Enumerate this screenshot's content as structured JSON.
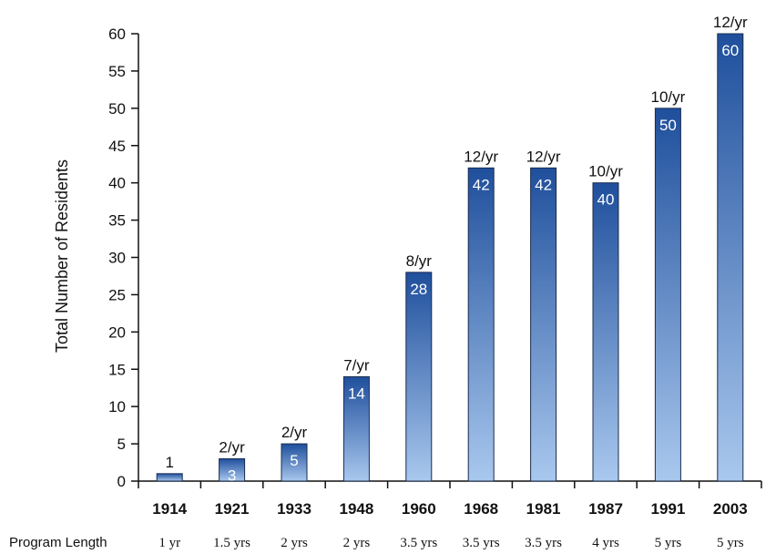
{
  "chart_data": {
    "type": "bar",
    "title": "",
    "xlabel": "",
    "ylabel": "Total Number of Residents",
    "ylim": [
      0,
      60
    ],
    "yticks": [
      0,
      5,
      10,
      15,
      20,
      25,
      30,
      35,
      40,
      45,
      50,
      55,
      60
    ],
    "categories": [
      "1914",
      "1921",
      "1933",
      "1948",
      "1960",
      "1968",
      "1981",
      "1987",
      "1991",
      "2003"
    ],
    "values": [
      1,
      3,
      5,
      14,
      28,
      42,
      42,
      40,
      50,
      60
    ],
    "value_labels": [
      "",
      "3",
      "5",
      "14",
      "28",
      "42",
      "42",
      "40",
      "50",
      "60"
    ],
    "top_labels": [
      "1",
      "2/yr",
      "2/yr",
      "7/yr",
      "8/yr",
      "12/yr",
      "12/yr",
      "10/yr",
      "10/yr",
      "12/yr"
    ],
    "program_length_title": "Program Length",
    "program_lengths": [
      "1 yr",
      "1.5 yrs",
      "2 yrs",
      "2 yrs",
      "3.5 yrs",
      "3.5 yrs",
      "3.5 yrs",
      "4 yrs",
      "5 yrs",
      "5 yrs"
    ],
    "grid": false,
    "legend": "none",
    "colors": {
      "bar_top": "#1f4f9c",
      "bar_bottom": "#a9c8ee",
      "axis": "#111111"
    }
  }
}
